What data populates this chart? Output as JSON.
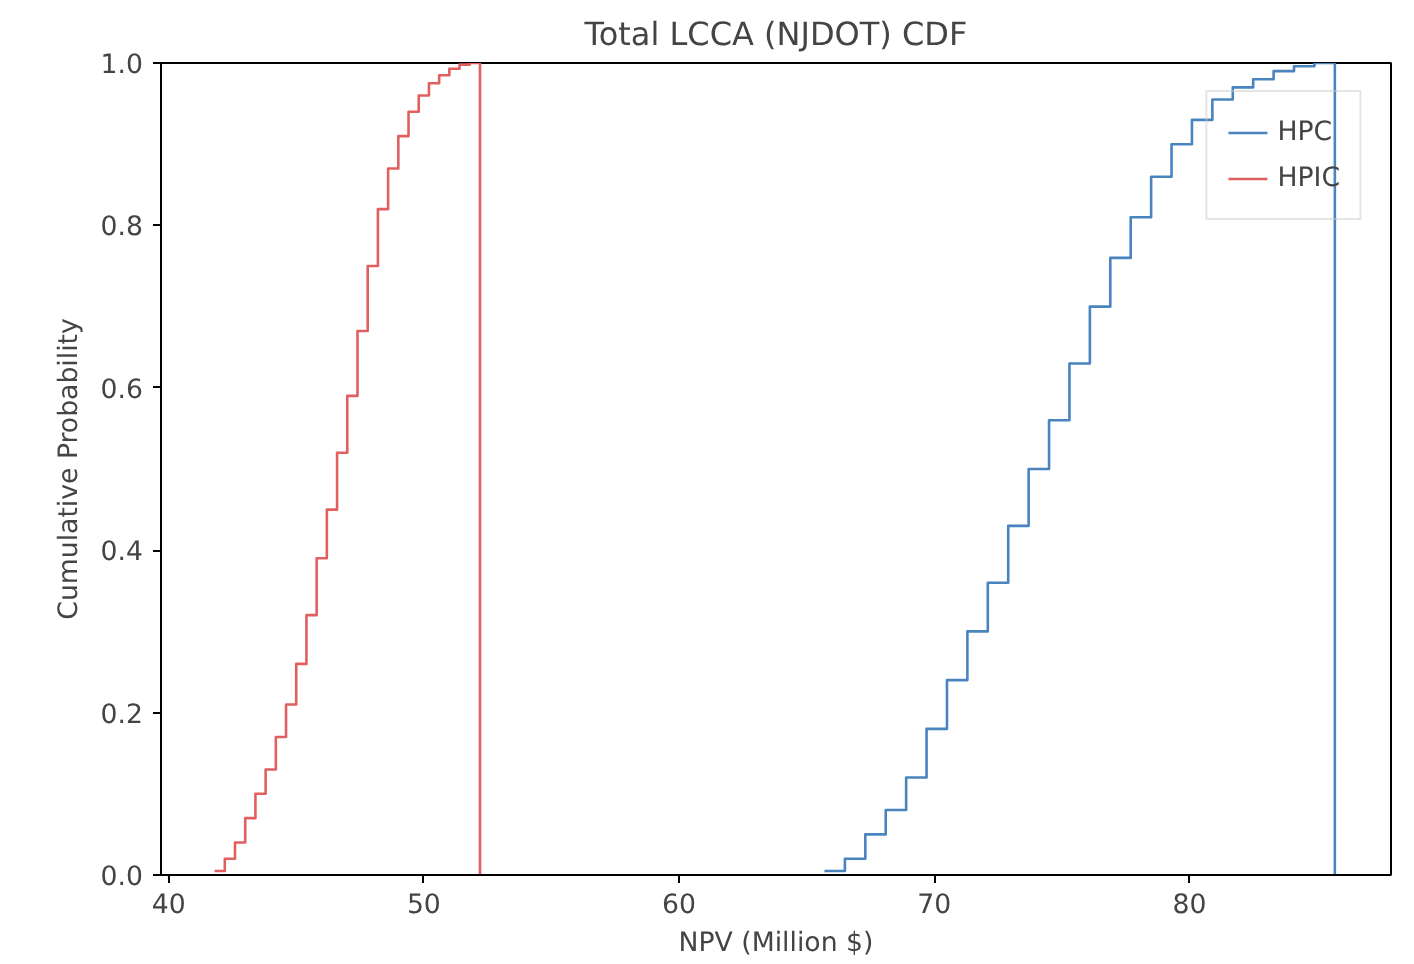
{
  "chart_data": {
    "type": "step",
    "title": "Total LCCA (NJDOT) CDF",
    "xlabel": "NPV (Million $)",
    "ylabel": "Cumulative Probability",
    "xlim": [
      39.7,
      87.9
    ],
    "ylim": [
      0,
      1
    ],
    "xticks": [
      40,
      50,
      60,
      70,
      80
    ],
    "yticks": [
      {
        "value": 0,
        "label": "0.0"
      },
      0.2,
      0.4,
      0.6,
      0.8,
      {
        "value": 1,
        "label": "1.0"
      }
    ],
    "legend": "top right",
    "series": [
      {
        "name": "HPC",
        "color": "#4a84be",
        "x": [
          65.7,
          66.5,
          67.3,
          68.1,
          68.9,
          69.7,
          70.5,
          71.3,
          72.1,
          72.9,
          73.7,
          74.5,
          75.3,
          76.1,
          76.9,
          77.7,
          78.5,
          79.3,
          80.1,
          80.9,
          81.7,
          82.5,
          83.3,
          84.1,
          84.9,
          85.7
        ],
        "values": [
          0.005,
          0.02,
          0.05,
          0.08,
          0.12,
          0.18,
          0.24,
          0.3,
          0.36,
          0.43,
          0.5,
          0.56,
          0.63,
          0.7,
          0.76,
          0.81,
          0.86,
          0.9,
          0.93,
          0.955,
          0.97,
          0.98,
          0.99,
          0.996,
          1.0,
          0
        ]
      },
      {
        "name": "HPIC",
        "color": "#e06060",
        "x": [
          41.8,
          42.2,
          42.6,
          43.0,
          43.4,
          43.8,
          44.2,
          44.6,
          45.0,
          45.4,
          45.8,
          46.2,
          46.6,
          47.0,
          47.4,
          47.8,
          48.2,
          48.6,
          49.0,
          49.4,
          49.8,
          50.2,
          50.6,
          51.0,
          51.4,
          51.8,
          52.2
        ],
        "values": [
          0.005,
          0.02,
          0.04,
          0.07,
          0.1,
          0.13,
          0.17,
          0.21,
          0.26,
          0.32,
          0.39,
          0.45,
          0.52,
          0.59,
          0.67,
          0.75,
          0.82,
          0.87,
          0.91,
          0.94,
          0.96,
          0.975,
          0.985,
          0.993,
          0.998,
          1.0,
          0
        ]
      }
    ]
  }
}
